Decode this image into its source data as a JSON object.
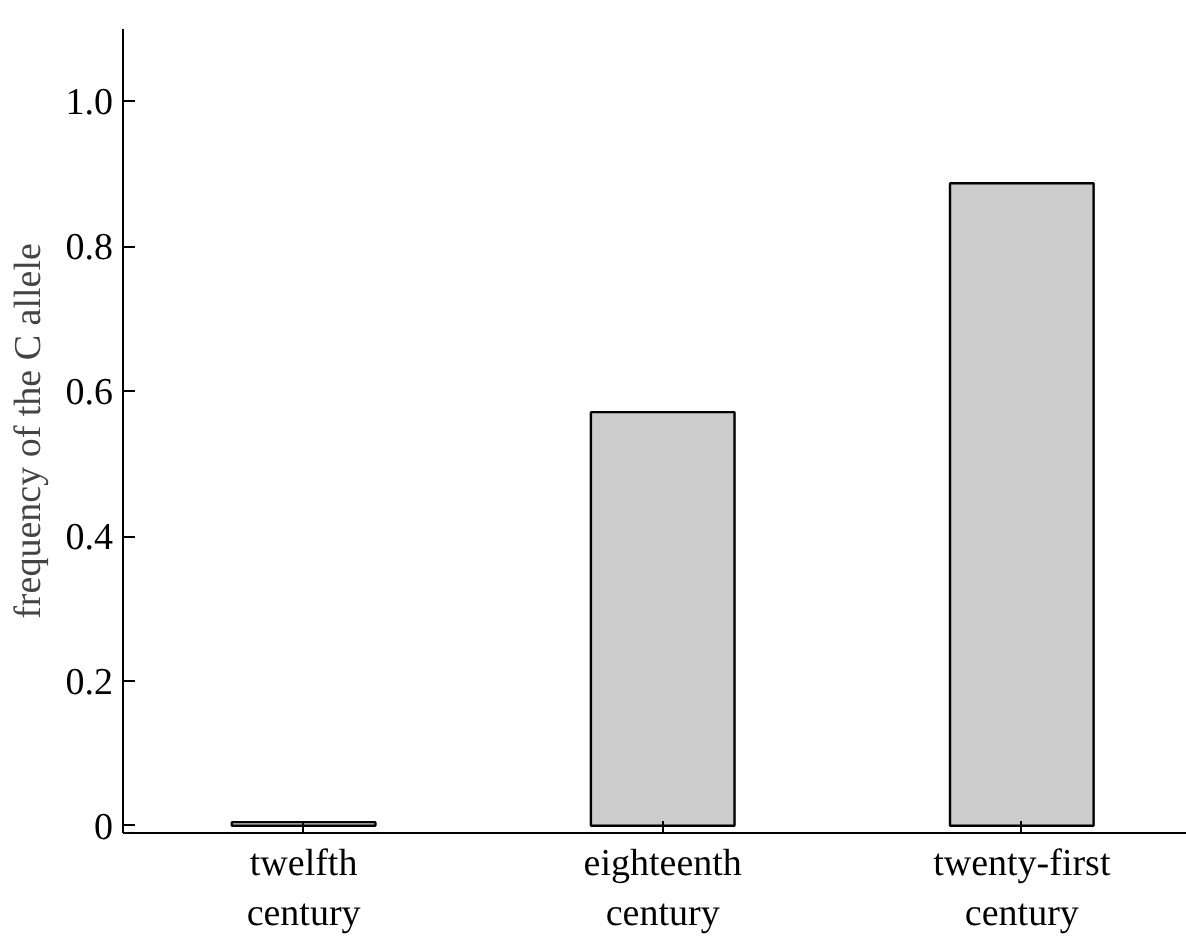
{
  "chart_data": {
    "type": "bar",
    "ylabel": "frequency of the C allele",
    "categories": [
      "twelfth century",
      "eighteenth century",
      "twenty-first century"
    ],
    "values": [
      0.005,
      0.571,
      0.887
    ],
    "color": "#cccccc",
    "ylim": [
      -0.01,
      1.1
    ],
    "yticks": [
      0,
      0.2,
      0.4,
      0.6,
      0.8,
      {
        "value": 1,
        "label": "1.0"
      }
    ],
    "grid": false
  }
}
